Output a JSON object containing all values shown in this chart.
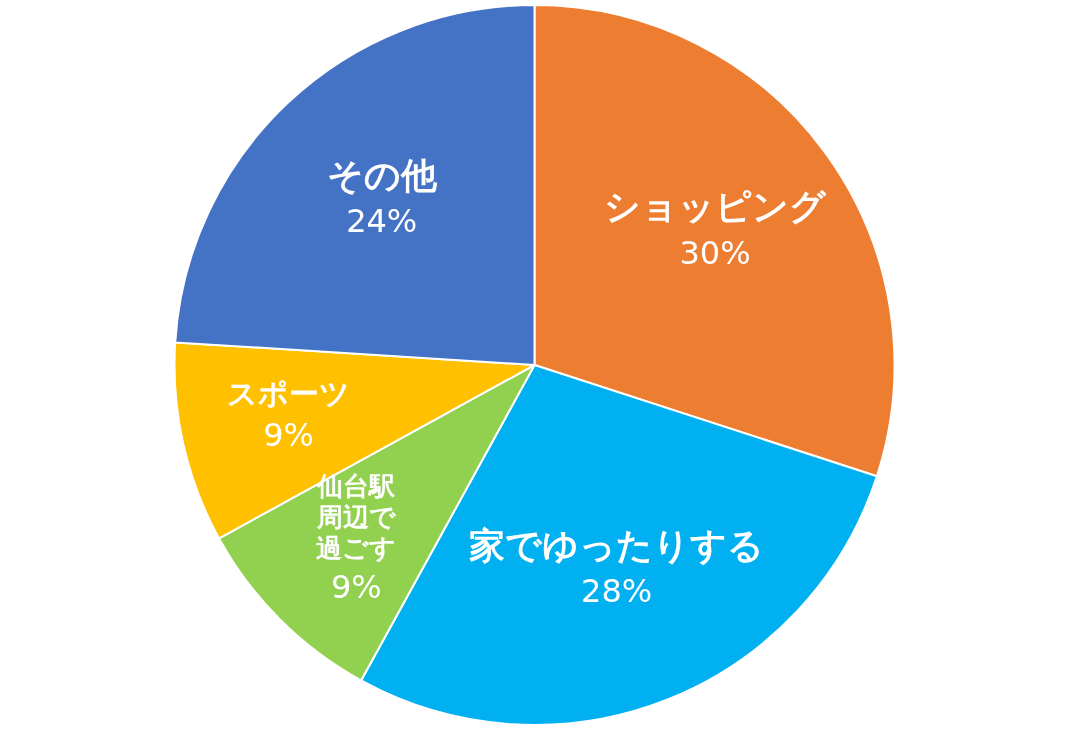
{
  "chart_data": {
    "type": "pie",
    "categories": [
      "ショッピング",
      "家でゆったりする",
      "仙台駅周辺で過ごす",
      "スポーツ",
      "その他"
    ],
    "values": [
      30,
      28,
      9,
      9,
      24
    ],
    "value_labels": [
      "30%",
      "28%",
      "9%",
      "9%",
      "24%"
    ],
    "colors": [
      "#ed7d31",
      "#00b0f0",
      "#92d050",
      "#ffc000",
      "#4472c4"
    ],
    "legend": false
  }
}
